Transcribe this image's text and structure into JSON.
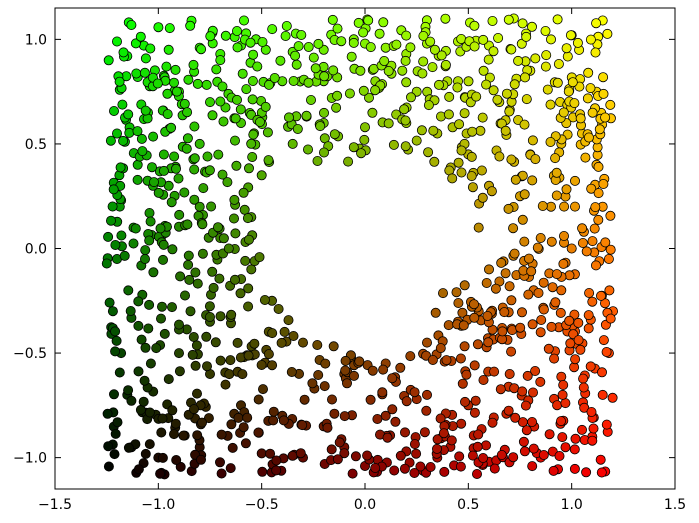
{
  "chart_data": {
    "type": "scatter",
    "title": "",
    "xlabel": "",
    "ylabel": "",
    "xlim": [
      -1.5,
      1.5
    ],
    "ylim": [
      -1.15,
      1.15
    ],
    "x_ticks": [
      -1.5,
      -1.0,
      -0.5,
      0.0,
      0.5,
      1.0,
      1.5
    ],
    "x_tick_labels": [
      "−1.5",
      "−1.0",
      "−0.5",
      "0.0",
      "0.5",
      "1.0",
      "1.5"
    ],
    "y_ticks": [
      -1.0,
      -0.5,
      0.0,
      0.5,
      1.0
    ],
    "y_tick_labels": [
      "−1.0",
      "−0.5",
      "0.0",
      "0.5",
      "1.0"
    ],
    "grid": false,
    "legend": "none",
    "marker": "circle",
    "marker_edge_color": "#000000",
    "color_mapping": {
      "description_hint": "red channel increases with x, green channel increases with y",
      "corners": {
        "top_left": "#00ff00",
        "top_right": "#ffff00",
        "bottom_left": "#000000",
        "bottom_right": "#ff0000"
      }
    },
    "point_distribution": {
      "x_range": [
        -1.25,
        1.2
      ],
      "y_range": [
        -1.08,
        1.1
      ],
      "empty_region_center": [
        0.0,
        0.0
      ],
      "empty_region_radius_approx": 0.55,
      "approx_point_count": 1200
    },
    "points": [
      [
        -1.24,
        0.9
      ],
      [
        -1.2,
        0.99
      ],
      [
        -1.15,
        0.92
      ],
      [
        -1.1,
        0.82
      ],
      [
        -1.07,
        0.97
      ],
      [
        -0.95,
        0.95
      ],
      [
        -0.8,
        0.96
      ],
      [
        -0.7,
        0.93
      ],
      [
        -0.6,
        0.97
      ],
      [
        -0.48,
        0.95
      ],
      [
        -0.35,
        0.94
      ],
      [
        -0.2,
        0.95
      ],
      [
        0.0,
        0.98
      ],
      [
        0.1,
        0.96
      ],
      [
        0.2,
        0.93
      ],
      [
        0.3,
        0.98
      ],
      [
        0.45,
        0.99
      ],
      [
        0.6,
        0.97
      ],
      [
        0.72,
        1.1
      ],
      [
        0.9,
        1.0
      ],
      [
        1.0,
        1.02
      ],
      [
        1.15,
        1.09
      ],
      [
        1.08,
        0.84
      ],
      [
        1.12,
        0.75
      ],
      [
        -1.2,
        0.55
      ],
      [
        -1.1,
        0.4
      ],
      [
        -1.18,
        0.23
      ],
      [
        -1.12,
        0.1
      ],
      [
        -1.2,
        -0.05
      ],
      [
        -1.22,
        -0.3
      ],
      [
        -1.18,
        -0.5
      ],
      [
        -1.15,
        -0.7
      ],
      [
        -1.13,
        -0.95
      ],
      [
        -1.0,
        -1.0
      ],
      [
        -0.97,
        -1.08
      ],
      [
        -0.8,
        -0.95
      ],
      [
        -0.65,
        -1.05
      ],
      [
        -0.5,
        -0.98
      ],
      [
        -0.3,
        -1.0
      ],
      [
        -0.1,
        -0.95
      ],
      [
        0.0,
        -1.04
      ],
      [
        0.2,
        -0.97
      ],
      [
        0.35,
        -1.0
      ],
      [
        0.6,
        -1.02
      ],
      [
        0.85,
        -1.0
      ],
      [
        0.97,
        -0.95
      ],
      [
        1.07,
        -1.07
      ],
      [
        1.1,
        -0.9
      ],
      [
        1.15,
        -0.7
      ],
      [
        1.18,
        -0.5
      ],
      [
        1.2,
        -0.3
      ],
      [
        1.18,
        -0.05
      ],
      [
        1.15,
        0.2
      ],
      [
        1.12,
        0.4
      ],
      [
        1.05,
        0.55
      ],
      [
        0.95,
        0.5
      ],
      [
        0.8,
        0.45
      ],
      [
        0.6,
        0.3
      ],
      [
        0.55,
        0.1
      ],
      [
        0.6,
        -0.1
      ],
      [
        0.55,
        -0.3
      ],
      [
        0.45,
        -0.35
      ],
      [
        0.3,
        -0.45
      ],
      [
        0.1,
        -0.55
      ],
      [
        -0.1,
        -0.6
      ],
      [
        -0.3,
        -0.45
      ],
      [
        -0.45,
        -0.25
      ],
      [
        -0.55,
        -0.1
      ],
      [
        -0.55,
        0.15
      ],
      [
        -0.5,
        0.35
      ],
      [
        -0.35,
        0.5
      ],
      [
        -0.2,
        0.6
      ],
      [
        0.0,
        0.58
      ],
      [
        0.2,
        0.6
      ],
      [
        0.35,
        0.55
      ],
      [
        0.5,
        0.45
      ],
      [
        -1.05,
        0.65
      ],
      [
        -0.9,
        0.75
      ],
      [
        -0.75,
        0.7
      ],
      [
        -0.6,
        0.6
      ],
      [
        -0.8,
        0.5
      ],
      [
        -0.95,
        0.3
      ],
      [
        -0.8,
        0.2
      ],
      [
        -0.7,
        0.05
      ],
      [
        -0.85,
        -0.15
      ],
      [
        -0.75,
        -0.35
      ],
      [
        -0.9,
        -0.5
      ],
      [
        -0.75,
        -0.6
      ],
      [
        -0.6,
        -0.75
      ],
      [
        -0.4,
        -0.8
      ],
      [
        -0.2,
        -0.85
      ],
      [
        0.1,
        -0.8
      ],
      [
        0.3,
        -0.7
      ],
      [
        0.5,
        -0.75
      ],
      [
        0.7,
        -0.6
      ],
      [
        0.85,
        -0.4
      ],
      [
        0.95,
        -0.2
      ],
      [
        0.85,
        0.05
      ],
      [
        0.75,
        0.25
      ],
      [
        0.9,
        0.2
      ],
      [
        1.0,
        0.0
      ],
      [
        0.65,
        0.7
      ],
      [
        0.45,
        0.8
      ],
      [
        0.8,
        0.85
      ],
      [
        -0.4,
        0.8
      ],
      [
        -0.2,
        0.8
      ],
      [
        0.05,
        0.8
      ],
      [
        0.25,
        0.75
      ]
    ]
  }
}
